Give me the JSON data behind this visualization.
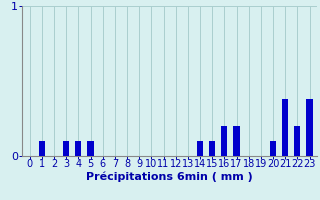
{
  "categories": [
    0,
    1,
    2,
    3,
    4,
    5,
    6,
    7,
    8,
    9,
    10,
    11,
    12,
    13,
    14,
    15,
    16,
    17,
    18,
    19,
    20,
    21,
    22,
    23
  ],
  "values": [
    0,
    0.1,
    0,
    0.1,
    0.1,
    0.1,
    0,
    0,
    0,
    0,
    0,
    0,
    0,
    0,
    0.1,
    0.1,
    0.2,
    0.2,
    0,
    0,
    0.1,
    0.38,
    0.2,
    0.38
  ],
  "bar_color": "#0000cc",
  "background_color": "#d8f0f0",
  "grid_color": "#aacece",
  "axis_color": "#888888",
  "text_color": "#0000aa",
  "xlabel": "Précipitations 6min ( mm )",
  "ylim": [
    0,
    1.0
  ],
  "yticks": [
    0,
    1
  ],
  "xlim": [
    -0.6,
    23.6
  ],
  "bar_width": 0.5,
  "xlabel_fontsize": 8,
  "tick_fontsize": 7
}
